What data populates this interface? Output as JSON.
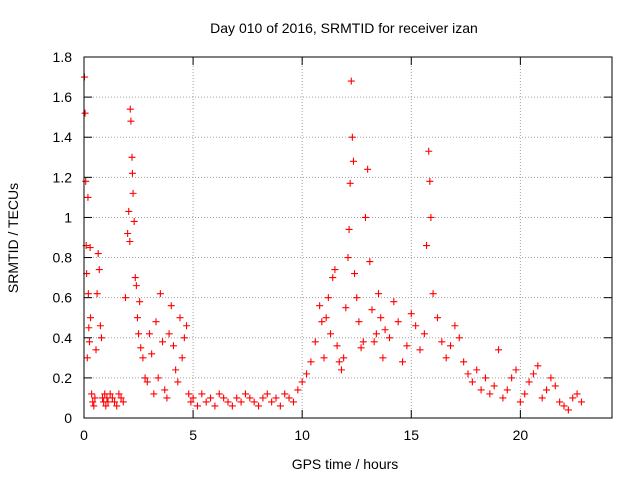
{
  "chart_data": {
    "type": "scatter",
    "title": "Day 010 of 2016, SRMTID for receiver izan",
    "xlabel": "GPS time / hours",
    "ylabel": "SRMTID / TECUs",
    "xlim": [
      0,
      24.2
    ],
    "ylim": [
      0,
      1.8
    ],
    "xticks": [
      "0",
      "5",
      "10",
      "15",
      "20"
    ],
    "yticks": [
      "0",
      "0.2",
      "0.4",
      "0.6",
      "0.8",
      "1",
      "1.2",
      "1.4",
      "1.6",
      "1.8"
    ],
    "grid": true,
    "marker": "+",
    "colors": {
      "series": "#ff0000"
    },
    "series": [
      {
        "name": "SRMTID",
        "x": [
          0.02,
          0.05,
          0.08,
          0.1,
          0.12,
          0.15,
          0.18,
          0.2,
          0.22,
          0.25,
          0.28,
          0.3,
          0.35,
          0.4,
          0.45,
          0.5,
          0.55,
          0.6,
          0.65,
          0.7,
          0.75,
          0.8,
          0.85,
          0.9,
          0.95,
          1.0,
          1.05,
          1.1,
          1.2,
          1.3,
          1.4,
          1.5,
          1.6,
          1.7,
          1.8,
          1.9,
          2.0,
          2.05,
          2.1,
          2.12,
          2.15,
          2.2,
          2.22,
          2.25,
          2.3,
          2.35,
          2.4,
          2.45,
          2.5,
          2.55,
          2.6,
          2.7,
          2.8,
          2.9,
          3.0,
          3.1,
          3.2,
          3.3,
          3.4,
          3.5,
          3.6,
          3.7,
          3.8,
          3.9,
          4.0,
          4.1,
          4.2,
          4.3,
          4.4,
          4.5,
          4.6,
          4.7,
          4.8,
          4.9,
          5.0,
          5.2,
          5.4,
          5.6,
          5.8,
          6.0,
          6.2,
          6.4,
          6.6,
          6.8,
          7.0,
          7.2,
          7.4,
          7.6,
          7.8,
          8.0,
          8.2,
          8.4,
          8.6,
          8.8,
          9.0,
          9.2,
          9.4,
          9.6,
          9.8,
          10.0,
          10.2,
          10.4,
          10.6,
          10.8,
          10.9,
          11.0,
          11.1,
          11.2,
          11.3,
          11.4,
          11.5,
          11.6,
          11.7,
          11.8,
          11.9,
          12.0,
          12.1,
          12.15,
          12.2,
          12.25,
          12.3,
          12.35,
          12.4,
          12.5,
          12.6,
          12.7,
          12.8,
          12.9,
          13.0,
          13.1,
          13.2,
          13.3,
          13.4,
          13.5,
          13.6,
          13.7,
          13.8,
          14.0,
          14.2,
          14.4,
          14.6,
          14.8,
          15.0,
          15.2,
          15.4,
          15.6,
          15.7,
          15.8,
          15.85,
          15.9,
          16.0,
          16.2,
          16.4,
          16.6,
          16.8,
          17.0,
          17.2,
          17.4,
          17.6,
          17.8,
          18.0,
          18.2,
          18.4,
          18.6,
          18.8,
          19.0,
          19.2,
          19.4,
          19.6,
          19.8,
          20.0,
          20.2,
          20.4,
          20.6,
          20.8,
          21.0,
          21.2,
          21.4,
          21.6,
          21.8,
          22.0,
          22.2,
          22.4,
          22.6,
          22.8
        ],
        "y": [
          1.7,
          1.52,
          1.18,
          0.86,
          0.72,
          0.3,
          1.1,
          0.62,
          0.45,
          0.38,
          0.85,
          0.5,
          0.12,
          0.08,
          0.06,
          0.1,
          0.34,
          0.62,
          0.82,
          0.74,
          0.46,
          0.4,
          0.1,
          0.08,
          0.12,
          0.06,
          0.1,
          0.08,
          0.12,
          0.1,
          0.08,
          0.06,
          0.12,
          0.1,
          0.08,
          0.6,
          0.92,
          1.03,
          0.88,
          1.54,
          1.48,
          1.3,
          1.22,
          1.12,
          0.98,
          0.7,
          0.66,
          0.5,
          0.42,
          0.58,
          0.35,
          0.3,
          0.2,
          0.18,
          0.42,
          0.32,
          0.12,
          0.48,
          0.2,
          0.62,
          0.38,
          0.14,
          0.1,
          0.42,
          0.56,
          0.36,
          0.24,
          0.18,
          0.5,
          0.3,
          0.4,
          0.46,
          0.12,
          0.08,
          0.1,
          0.06,
          0.12,
          0.08,
          0.1,
          0.06,
          0.12,
          0.1,
          0.08,
          0.06,
          0.1,
          0.08,
          0.12,
          0.1,
          0.08,
          0.06,
          0.1,
          0.12,
          0.08,
          0.1,
          0.06,
          0.12,
          0.1,
          0.08,
          0.14,
          0.18,
          0.22,
          0.28,
          0.38,
          0.56,
          0.48,
          0.3,
          0.5,
          0.6,
          0.42,
          0.7,
          0.74,
          0.36,
          0.28,
          0.24,
          0.3,
          0.55,
          0.8,
          0.94,
          1.17,
          1.68,
          1.4,
          1.28,
          0.72,
          0.6,
          0.48,
          0.35,
          0.38,
          1.0,
          1.24,
          0.78,
          0.54,
          0.38,
          0.42,
          0.62,
          0.5,
          0.3,
          0.44,
          0.4,
          0.58,
          0.48,
          0.28,
          0.36,
          0.52,
          0.46,
          0.34,
          0.42,
          0.86,
          1.33,
          1.18,
          1.0,
          0.62,
          0.5,
          0.38,
          0.3,
          0.36,
          0.46,
          0.4,
          0.28,
          0.22,
          0.18,
          0.24,
          0.14,
          0.2,
          0.12,
          0.16,
          0.34,
          0.1,
          0.14,
          0.2,
          0.24,
          0.08,
          0.12,
          0.18,
          0.22,
          0.26,
          0.1,
          0.14,
          0.2,
          0.16,
          0.08,
          0.06,
          0.04,
          0.1,
          0.12,
          0.08
        ]
      }
    ]
  }
}
